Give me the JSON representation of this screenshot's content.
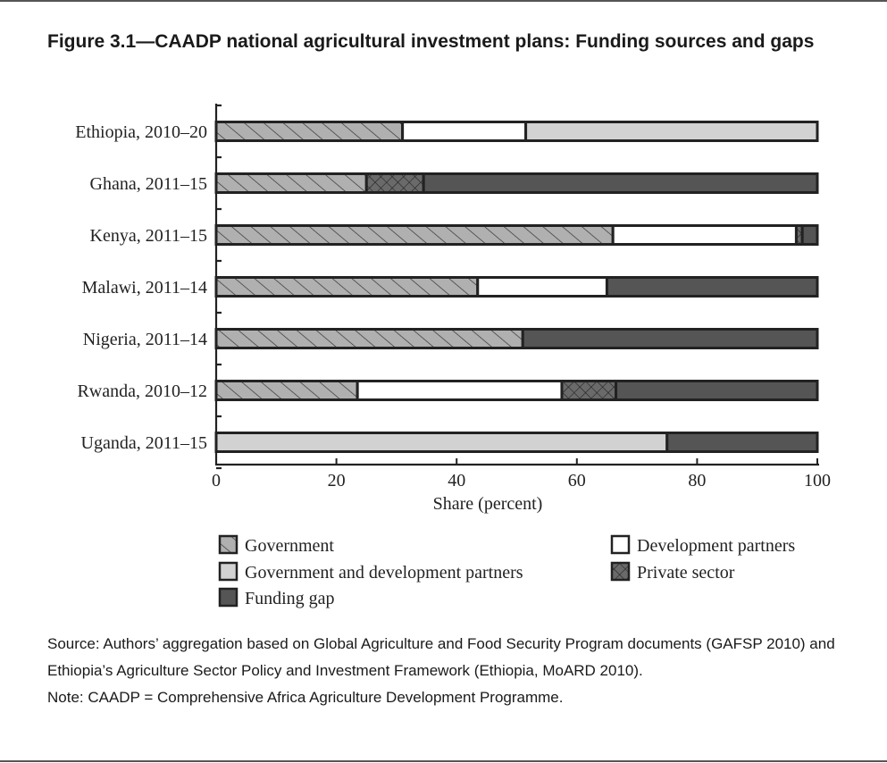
{
  "title": "Figure 3.1—CAADP national agricultural investment plans: Funding sources and gaps",
  "source": "Source: Authors’ aggregation based on Global Agriculture and Food Security Program documents (GAFSP 2010) and Ethiopia’s Agriculture Sector Policy and Investment Framework (Ethiopia, MoARD 2010).",
  "note": "Note: CAADP = Comprehensive Africa Agriculture Development Programme.",
  "chart_data": {
    "type": "bar",
    "orientation": "horizontal",
    "stacked": true,
    "xlabel": "Share (percent)",
    "xlim": [
      0,
      100
    ],
    "xticks": [
      0,
      20,
      40,
      60,
      80,
      100
    ],
    "categories": [
      "Ethiopia, 2010–20",
      "Ghana, 2011–15",
      "Kenya, 2011–15",
      "Malawi, 2011–14",
      "Nigeria, 2011–14",
      "Rwanda, 2010–12",
      "Uganda, 2011–15"
    ],
    "series": [
      {
        "name": "Government",
        "pattern": "hatch",
        "color": "#b0b0b0",
        "values": [
          31,
          25,
          66,
          43.5,
          51,
          23.5,
          0
        ]
      },
      {
        "name": "Development partners",
        "pattern": "solid",
        "color": "#ffffff",
        "values": [
          20.5,
          0,
          30.5,
          21.5,
          0,
          34,
          0
        ]
      },
      {
        "name": "Government and development partners",
        "pattern": "solid",
        "color": "#d2d2d2",
        "values": [
          48.5,
          0,
          0,
          0,
          0,
          0,
          75
        ]
      },
      {
        "name": "Private sector",
        "pattern": "crosshatch",
        "color": "#6a6a6a",
        "values": [
          0,
          9.5,
          1,
          0,
          0,
          9,
          0
        ]
      },
      {
        "name": "Funding gap",
        "pattern": "solid",
        "color": "#555555",
        "values": [
          0,
          65.5,
          2.5,
          35,
          49,
          33.5,
          25
        ]
      }
    ],
    "legend": {
      "placement": "bottom",
      "items": [
        {
          "name": "Government",
          "pattern": "hatch",
          "color": "#b0b0b0"
        },
        {
          "name": "Development partners",
          "pattern": "solid",
          "color": "#ffffff"
        },
        {
          "name": "Government and development partners",
          "pattern": "solid",
          "color": "#d2d2d2"
        },
        {
          "name": "Private sector",
          "pattern": "crosshatch",
          "color": "#6a6a6a"
        },
        {
          "name": "Funding gap",
          "pattern": "solid",
          "color": "#555555"
        }
      ]
    },
    "grid": false
  }
}
